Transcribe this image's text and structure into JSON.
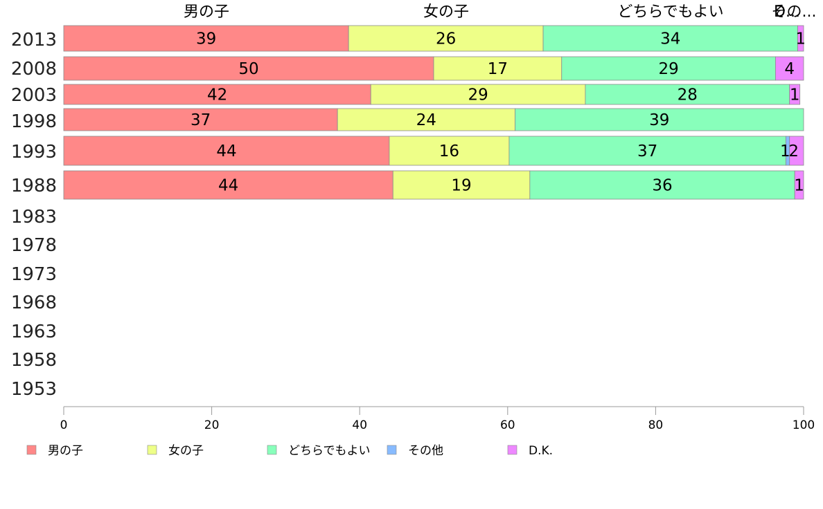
{
  "chart_data": {
    "type": "bar",
    "orientation": "horizontal",
    "stacked": true,
    "categories": [
      "2013",
      "2008",
      "2003",
      "1998",
      "1993",
      "1988",
      "1983",
      "1978",
      "1973",
      "1968",
      "1963",
      "1958",
      "1953"
    ],
    "series": [
      {
        "name": "男の子",
        "color": "#ff8888",
        "values": [
          38.5,
          50,
          41.5,
          37,
          44,
          44.5,
          null,
          null,
          null,
          null,
          null,
          null,
          null
        ],
        "labels": [
          "39",
          "50",
          "42",
          "37",
          "44",
          "44",
          "",
          "",
          "",
          "",
          "",
          "",
          ""
        ]
      },
      {
        "name": "女の子",
        "color": "#eeff88",
        "values": [
          26.3,
          17.3,
          29.0,
          24.0,
          16.2,
          18.5,
          null,
          null,
          null,
          null,
          null,
          null,
          null
        ],
        "labels": [
          "26",
          "17",
          "29",
          "24",
          "16",
          "19",
          "",
          "",
          "",
          "",
          "",
          "",
          ""
        ]
      },
      {
        "name": "どちらでもよい",
        "color": "#88ffbb",
        "values": [
          34.4,
          28.9,
          27.6,
          39.0,
          37.4,
          35.8,
          null,
          null,
          null,
          null,
          null,
          null,
          null
        ],
        "labels": [
          "34",
          "29",
          "28",
          "39",
          "37",
          "36",
          "",
          "",
          "",
          "",
          "",
          "",
          ""
        ]
      },
      {
        "name": "その他",
        "color": "#88bbff",
        "values": [
          0,
          0,
          0,
          0,
          0.5,
          0,
          null,
          null,
          null,
          null,
          null,
          null,
          null
        ],
        "labels": [
          "",
          "",
          "",
          "",
          "1",
          "",
          "",
          "",
          "",
          "",
          "",
          "",
          ""
        ]
      },
      {
        "name": "D.K.",
        "color": "#ee88ff",
        "values": [
          0.8,
          3.8,
          1.4,
          0,
          1.9,
          1.2,
          null,
          null,
          null,
          null,
          null,
          null,
          null
        ],
        "labels": [
          "1",
          "4",
          "1",
          "",
          "2",
          "1",
          "",
          "",
          "",
          "",
          "",
          "",
          ""
        ]
      }
    ],
    "top_labels": [
      "男の子",
      "女の子",
      "どちらでもよい",
      "その...",
      "D..."
    ],
    "xlim": [
      0,
      100
    ],
    "xticks": [
      "0",
      "20",
      "40",
      "60",
      "80",
      "100"
    ],
    "grid": false,
    "legend_position": "bottom"
  }
}
